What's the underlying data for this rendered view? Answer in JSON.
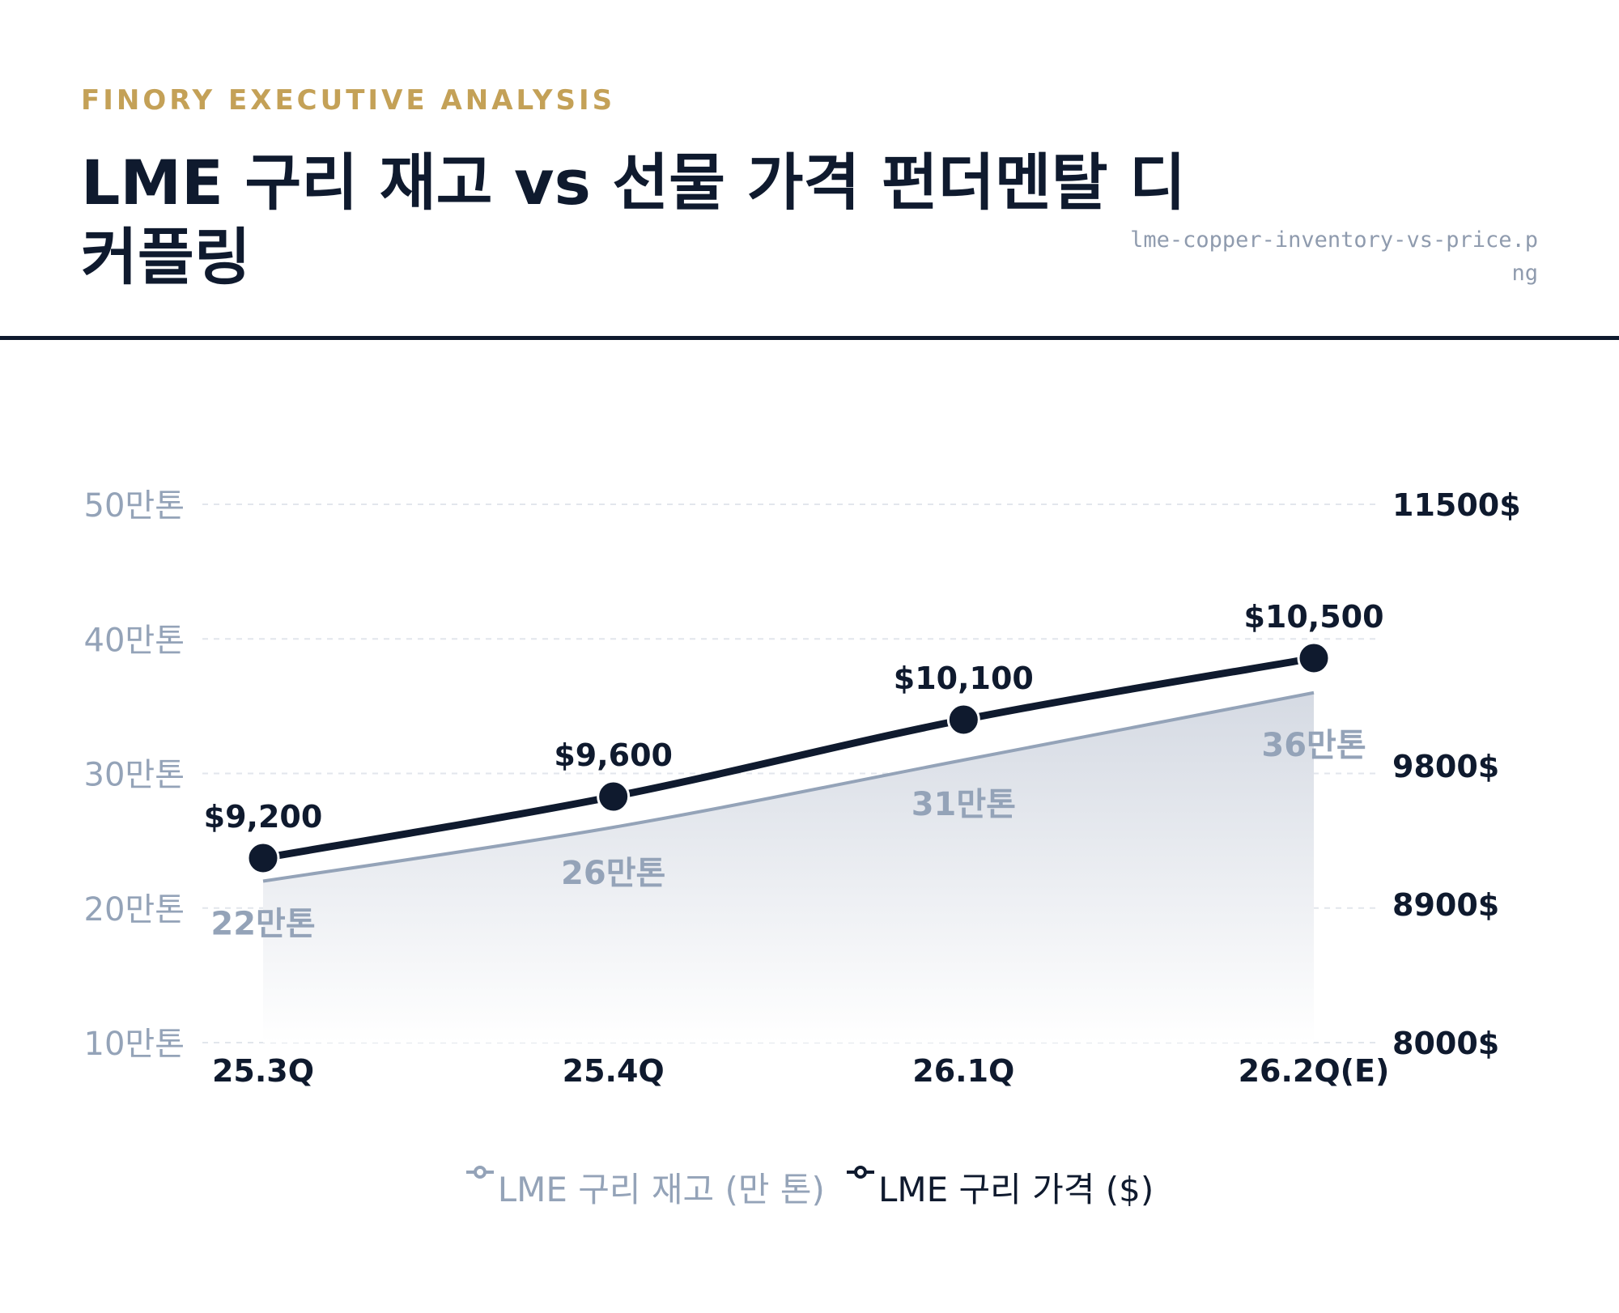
{
  "header": {
    "kicker": "FINORY EXECUTIVE ANALYSIS",
    "title": "LME 구리 재고 vs 선물 가격 펀더멘탈 디커플링",
    "filename": "lme-copper-inventory-vs-price.png"
  },
  "colors": {
    "inventory": "#94a3b8",
    "price": "#0f1a2e",
    "accent": "#c4a157",
    "grid": "#e2e6ec"
  },
  "chart_data": {
    "type": "line",
    "categories": [
      "25.3Q",
      "25.4Q",
      "26.1Q",
      "26.2Q(E)"
    ],
    "series": [
      {
        "name": "LME 구리 재고 (만 톤)",
        "axis": "left",
        "style": "area",
        "values": [
          22,
          26,
          31,
          36
        ],
        "labels": [
          "22만톤",
          "26만톤",
          "31만톤",
          "36만톤"
        ]
      },
      {
        "name": "LME 구리 가격 ($)",
        "axis": "right",
        "style": "line-markers",
        "values": [
          9200,
          9600,
          10100,
          10500
        ],
        "labels": [
          "$9,200",
          "$9,600",
          "$10,100",
          "$10,500"
        ]
      }
    ],
    "y_left": {
      "ticks": [
        10,
        20,
        30,
        40,
        50
      ],
      "tick_labels": [
        "10만톤",
        "20만톤",
        "30만톤",
        "40만톤",
        "50만톤"
      ],
      "range": [
        10,
        50
      ]
    },
    "y_right": {
      "ticks": [
        8000,
        8900,
        9800,
        11500
      ],
      "tick_labels": [
        "8000$",
        "8900$",
        "9800$",
        "11500$"
      ],
      "range": [
        8000,
        11500
      ]
    },
    "grid": true,
    "legend_position": "bottom"
  }
}
